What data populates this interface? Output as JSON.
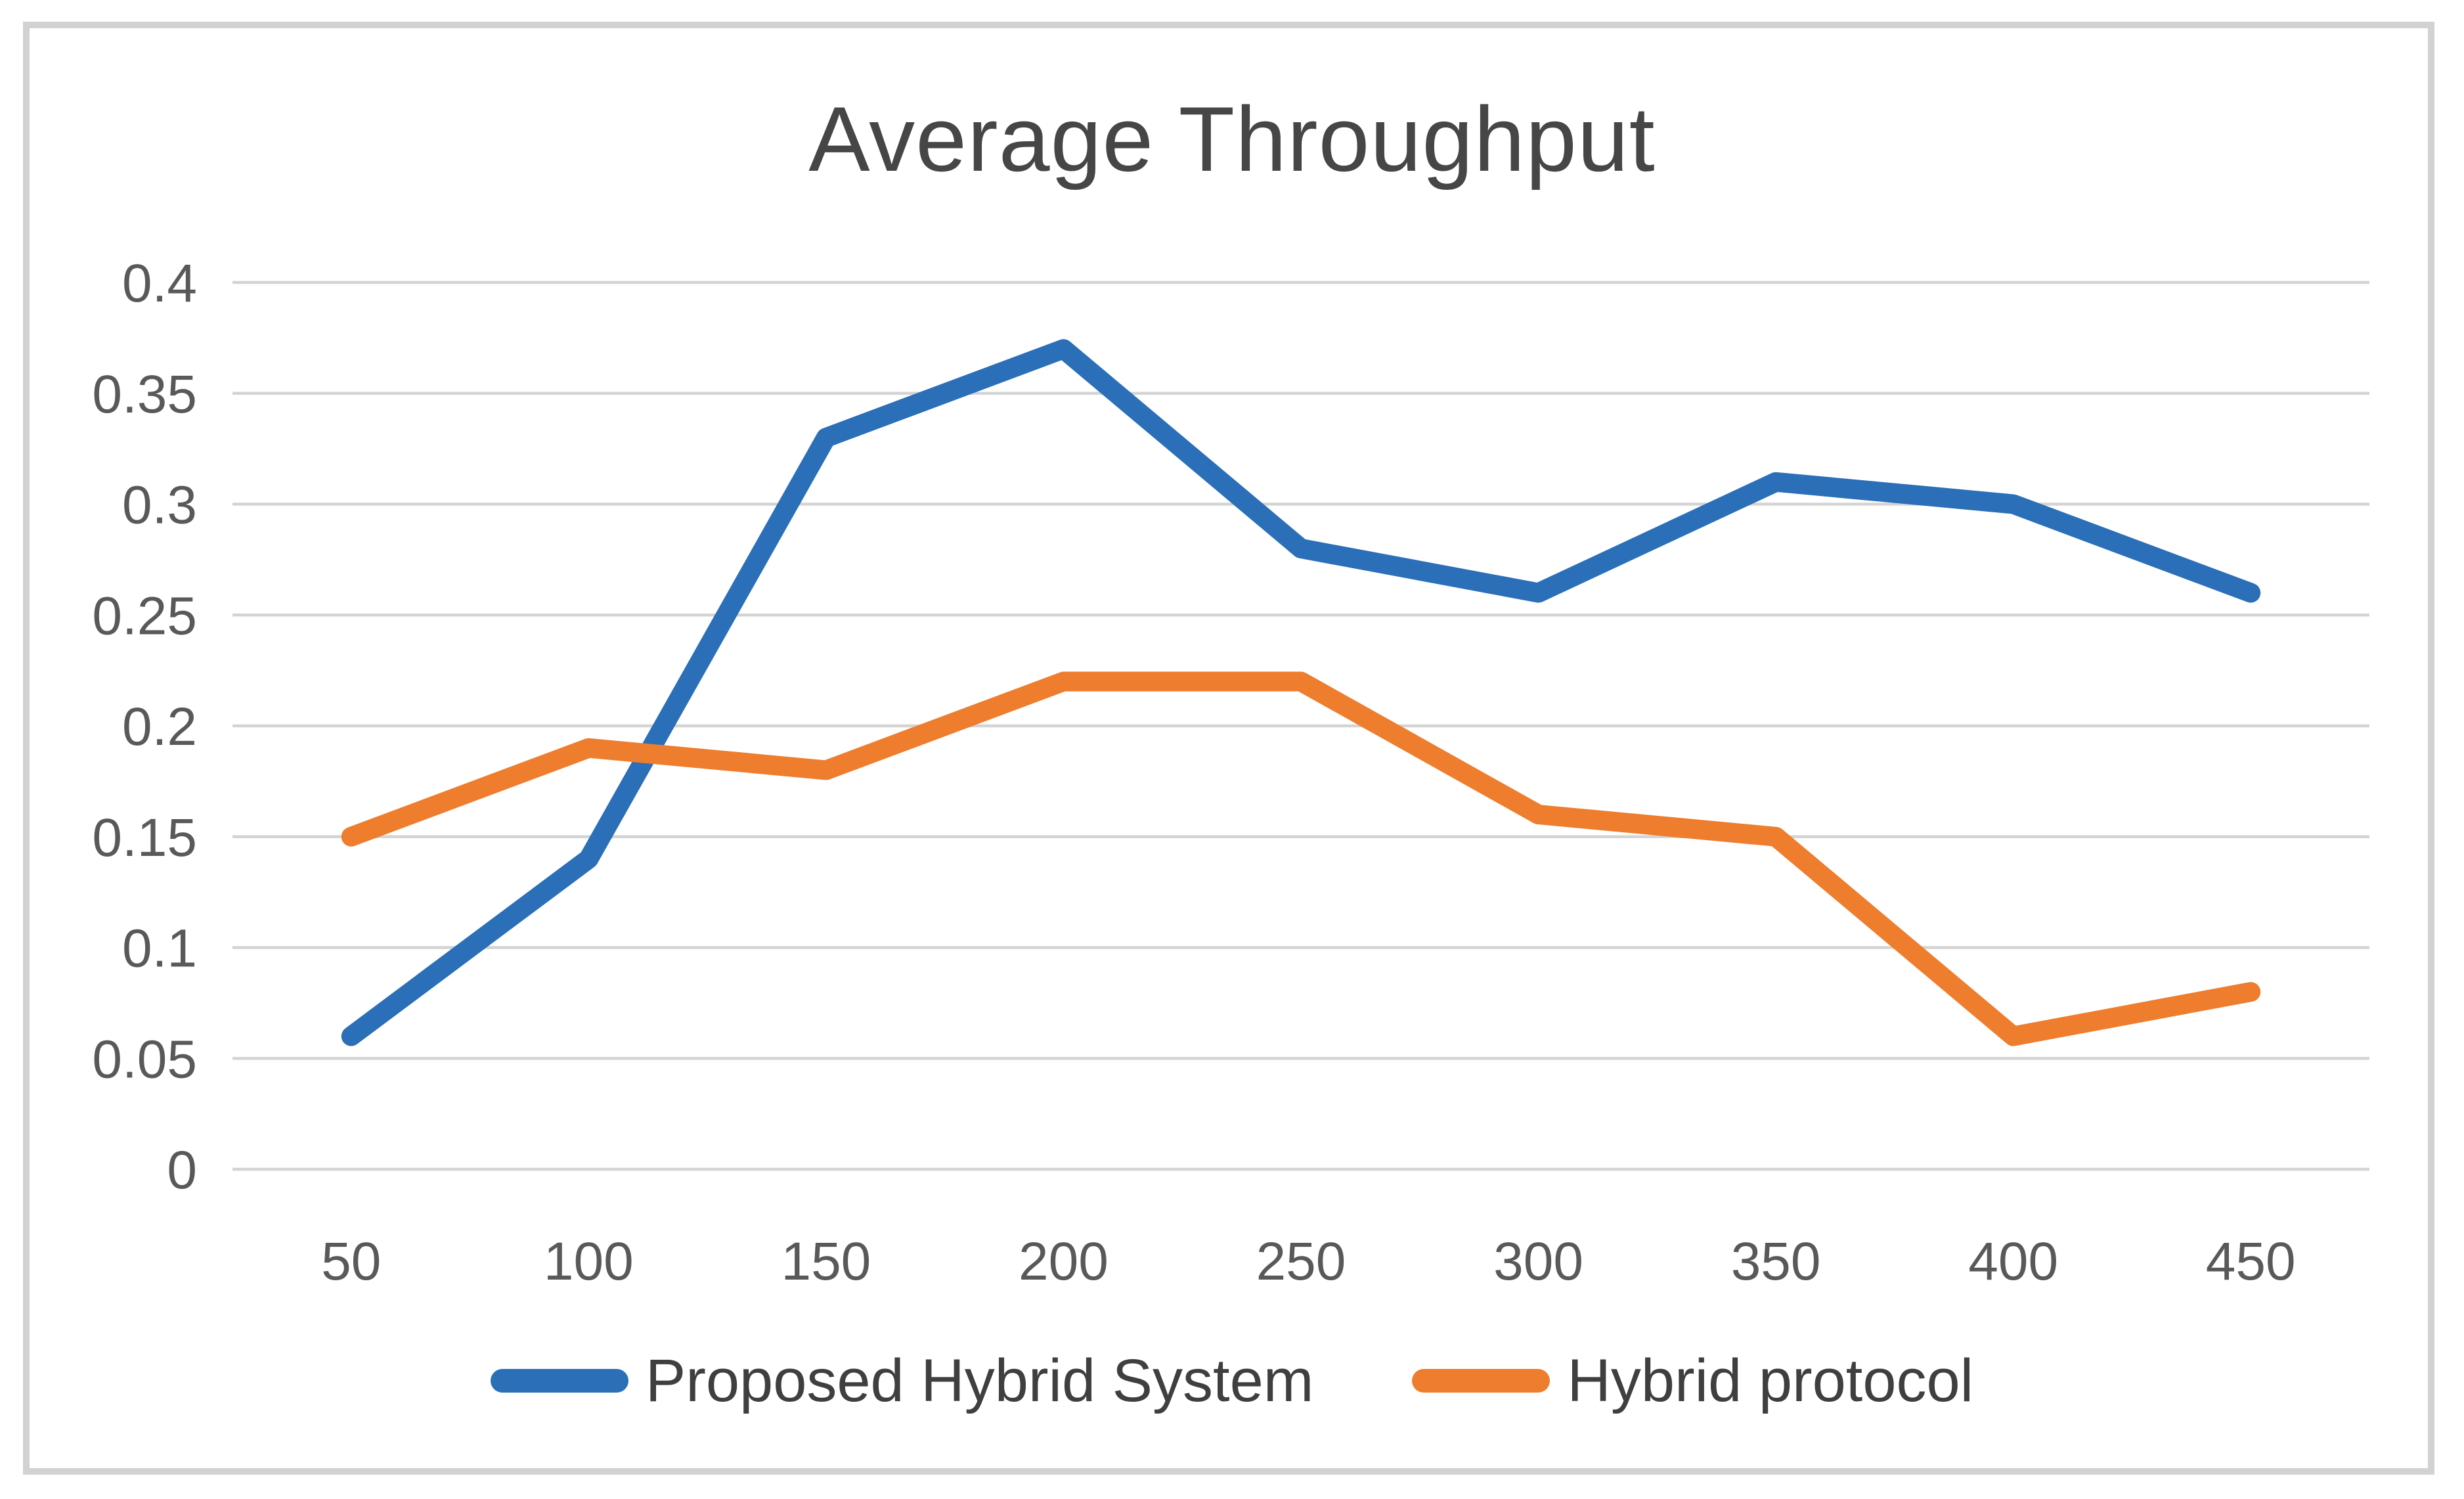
{
  "chart_data": {
    "type": "line",
    "title": "Average Throughput",
    "xlabel": "",
    "ylabel": "",
    "x": [
      50,
      100,
      150,
      200,
      250,
      300,
      350,
      400,
      450
    ],
    "x_tick_labels": [
      "50",
      "100",
      "150",
      "200",
      "250",
      "300",
      "350",
      "400",
      "450"
    ],
    "series": [
      {
        "name": "Proposed Hybrid System",
        "color": "#2a6fb8",
        "values": [
          0.06,
          0.14,
          0.33,
          0.37,
          0.28,
          0.26,
          0.31,
          0.3,
          0.26
        ]
      },
      {
        "name": "Hybrid protocol",
        "color": "#ee7d2e",
        "values": [
          0.15,
          0.19,
          0.18,
          0.22,
          0.22,
          0.16,
          0.15,
          0.06,
          0.08
        ]
      }
    ],
    "ylim": [
      0,
      0.4
    ],
    "ytick_step": 0.05,
    "y_tick_labels": [
      "0",
      "0.05",
      "0.1",
      "0.15",
      "0.2",
      "0.25",
      "0.3",
      "0.35",
      "0.4"
    ],
    "grid": "horizontal",
    "legend_position": "bottom"
  },
  "colors": {
    "gridline": "#d4d4d4",
    "tick_text": "#595959",
    "title_text": "#464646",
    "legend_text": "#3f3f3f",
    "frame_border": "#d2d2d2",
    "background": "#ffffff"
  }
}
